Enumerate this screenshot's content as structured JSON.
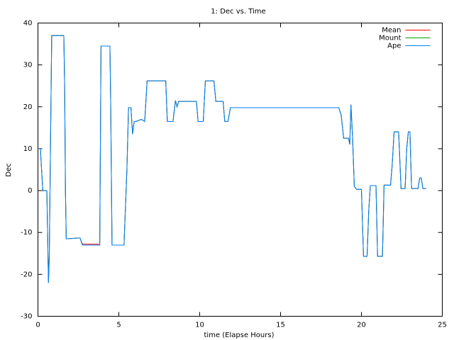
{
  "chart_data": {
    "type": "line",
    "title": "1: Dec vs. Time",
    "x_label": "time (Elapse Hours)",
    "y_label": "Dec",
    "x": [
      0,
      0.15,
      0.3,
      0.55,
      0.65,
      0.7,
      0.85,
      1.6,
      1.65,
      1.7,
      1.75,
      2.6,
      2.75,
      3.7,
      3.82,
      3.9,
      4.45,
      4.5,
      4.58,
      5.32,
      5.45,
      5.5,
      5.6,
      5.75,
      5.85,
      5.95,
      6.05,
      6.4,
      6.6,
      6.75,
      6.85,
      7.9,
      8.0,
      8.35,
      8.5,
      8.6,
      8.7,
      9.8,
      9.9,
      10.22,
      10.35,
      10.88,
      11.0,
      11.45,
      11.55,
      11.75,
      11.9,
      18.6,
      18.75,
      18.9,
      19.2,
      19.28,
      19.35,
      19.45,
      19.56,
      19.7,
      20.0,
      20.13,
      20.35,
      20.45,
      20.55,
      20.9,
      21.0,
      21.3,
      21.4,
      21.8,
      21.9,
      22.02,
      22.3,
      22.45,
      22.7,
      22.8,
      22.9,
      23.0,
      23.1,
      23.5,
      23.6,
      23.7,
      23.8,
      24.0
    ],
    "series": [
      {
        "name": "Mean",
        "color": "#ff0000",
        "values": [
          10,
          10,
          0,
          0,
          -22,
          -16,
          37,
          37,
          25,
          0,
          -11.5,
          -11.3,
          -12.8,
          -12.8,
          -13,
          34.5,
          34.5,
          20,
          -13,
          -13,
          0,
          5,
          19.8,
          19.8,
          13.5,
          16.5,
          16.5,
          17,
          16.5,
          26.2,
          26.2,
          26.2,
          16.5,
          16.5,
          21.5,
          20,
          21.3,
          21.3,
          16.5,
          16.5,
          26.2,
          26.2,
          21.3,
          21.3,
          16.5,
          16.5,
          19.8,
          19.8,
          18,
          12.5,
          12.5,
          11,
          20.5,
          13,
          1,
          0.3,
          0.3,
          -15.7,
          -15.7,
          -5,
          1.2,
          1.2,
          -15.7,
          -15.7,
          1.3,
          1.3,
          6,
          14,
          14,
          0.5,
          0.5,
          10,
          14,
          14,
          0.5,
          0.5,
          3,
          3,
          0.5,
          0.5
        ]
      },
      {
        "name": "Mount",
        "color": "#00a000",
        "values": [
          10,
          10,
          0,
          0,
          -22,
          -16,
          37,
          37,
          25,
          0,
          -11.5,
          -11.3,
          -13,
          -13,
          -13,
          34.5,
          34.5,
          20,
          -13,
          -13,
          0,
          5,
          19.8,
          19.8,
          13.5,
          16.5,
          16.5,
          17,
          16.5,
          26.2,
          26.2,
          26.2,
          16.5,
          16.5,
          21.5,
          20,
          21.3,
          21.3,
          16.5,
          16.5,
          26.2,
          26.2,
          21.3,
          21.3,
          16.5,
          16.5,
          19.8,
          19.8,
          18,
          12.5,
          12.5,
          11,
          20.5,
          13,
          1,
          0.3,
          0.3,
          -15.7,
          -15.7,
          -5,
          1.2,
          1.2,
          -15.7,
          -15.7,
          1.3,
          1.3,
          6,
          14,
          14,
          0.5,
          0.5,
          10,
          14,
          14,
          0.5,
          0.5,
          3,
          3,
          0.5,
          0.5
        ]
      },
      {
        "name": "Ape",
        "color": "#0080ff",
        "values": [
          10,
          10,
          0,
          0,
          -22,
          -16,
          37,
          37,
          25,
          0,
          -11.5,
          -11.3,
          -13,
          -13,
          -13,
          34.5,
          34.5,
          20,
          -13,
          -13,
          0,
          5,
          19.8,
          19.8,
          13.5,
          16.5,
          16.5,
          17,
          16.5,
          26.2,
          26.2,
          26.2,
          16.5,
          16.5,
          21.5,
          20,
          21.3,
          21.3,
          16.5,
          16.5,
          26.2,
          26.2,
          21.3,
          21.3,
          16.5,
          16.5,
          19.8,
          19.8,
          18,
          12.5,
          12.5,
          11,
          20.5,
          13,
          1,
          0.3,
          0.3,
          -15.7,
          -15.7,
          -5,
          1.2,
          1.2,
          -15.7,
          -15.7,
          1.3,
          1.3,
          6,
          14,
          14,
          0.5,
          0.5,
          10,
          14,
          14,
          0.5,
          0.5,
          3,
          3,
          0.5,
          0.5
        ]
      }
    ],
    "xlim": [
      0,
      25
    ],
    "xticks": [
      0,
      5,
      10,
      15,
      20,
      25
    ],
    "ylim": [
      -30,
      40
    ],
    "yticks": [
      -30,
      -20,
      -10,
      0,
      10,
      20,
      30,
      40
    ],
    "grid": false,
    "legend": "top-right"
  }
}
